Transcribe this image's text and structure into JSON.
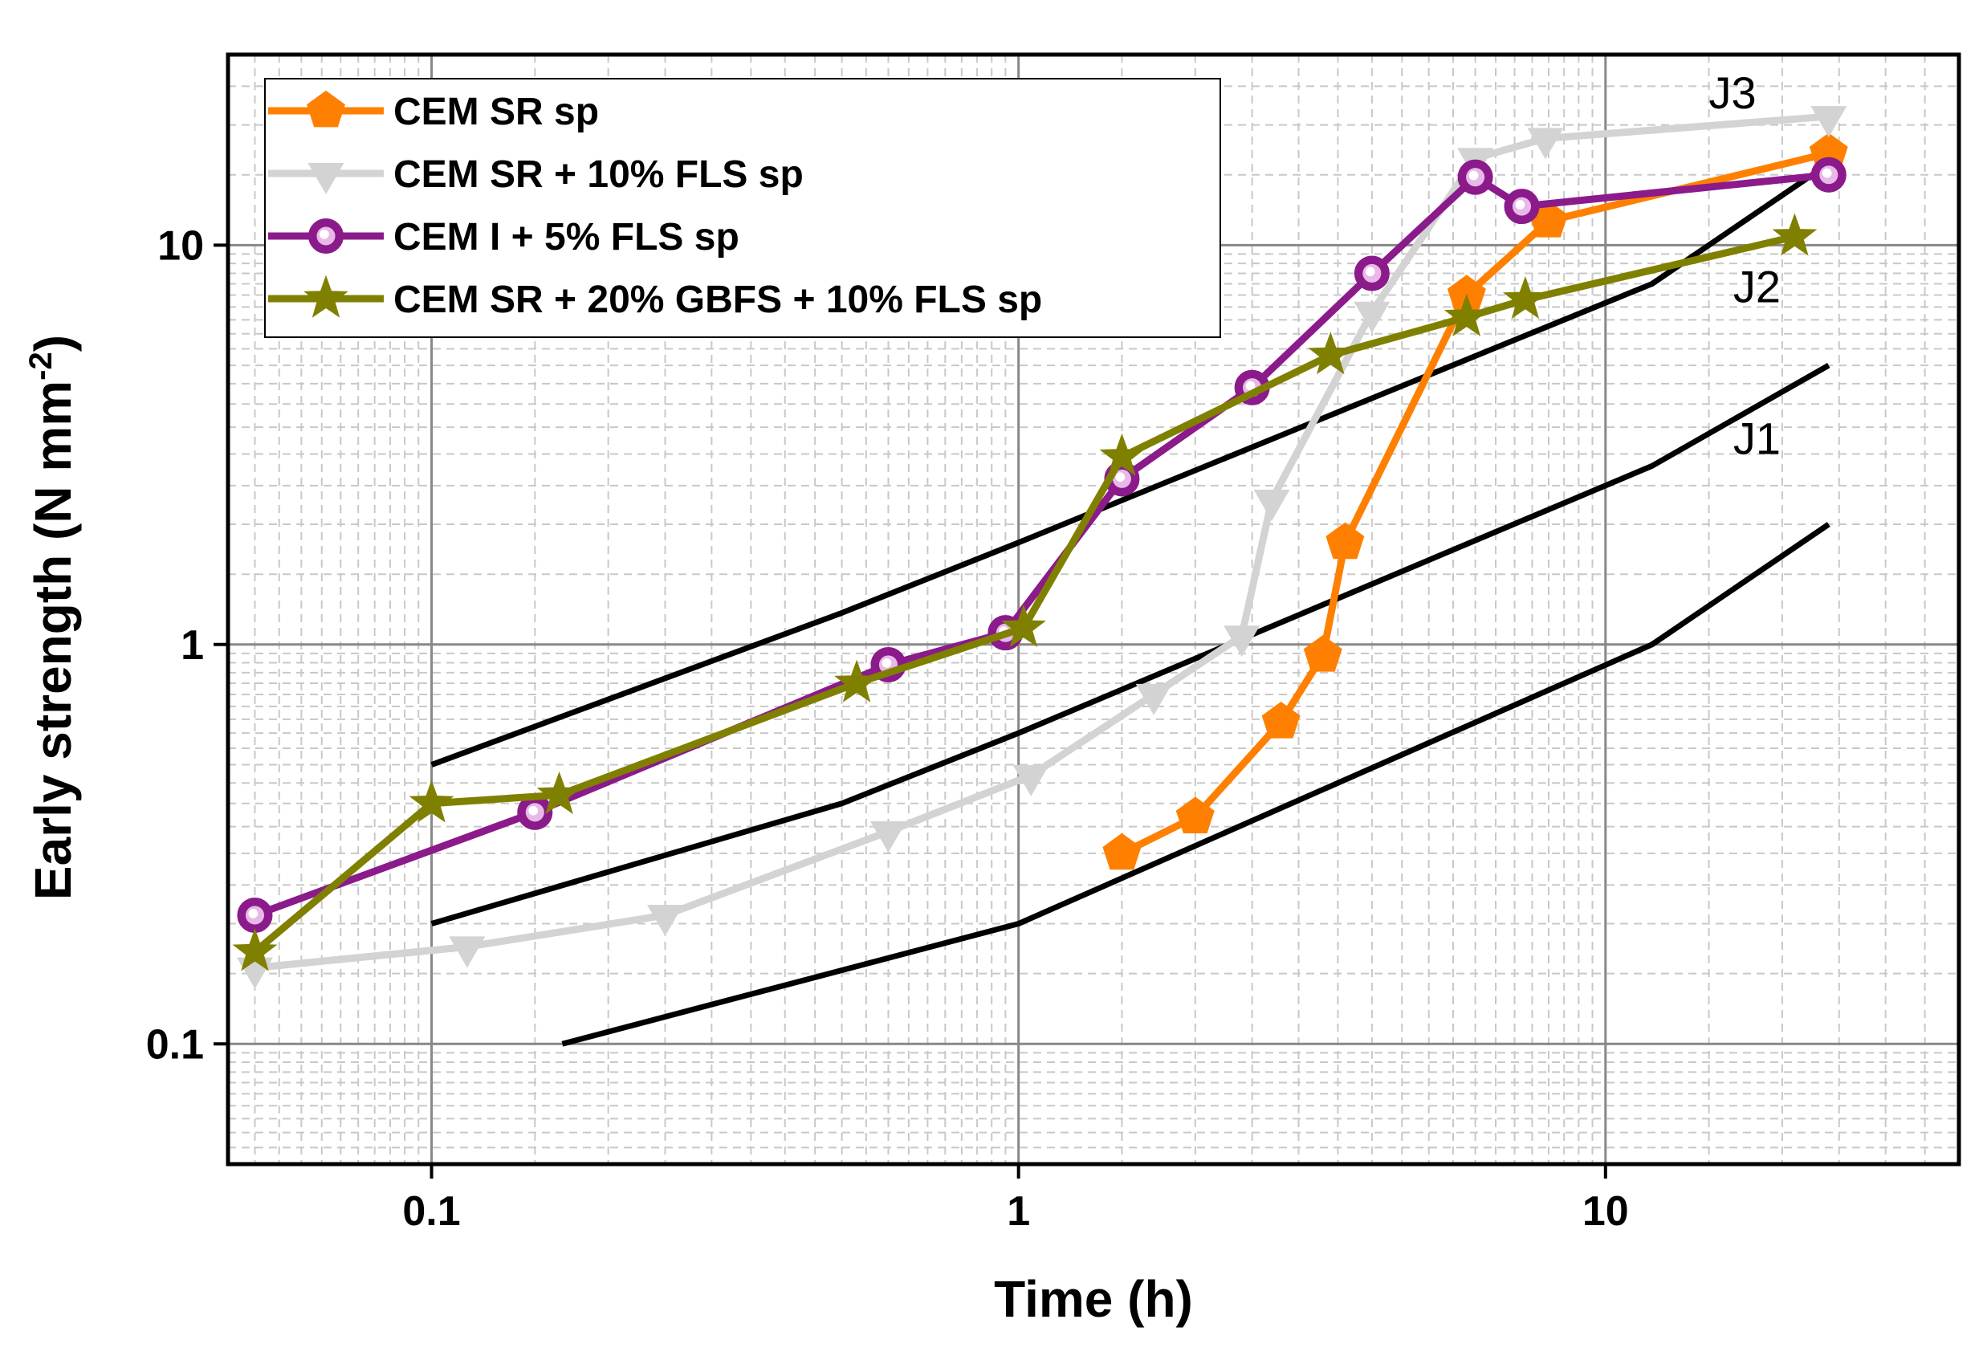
{
  "chart_data": {
    "type": "line",
    "scale": {
      "x": "log",
      "y": "log"
    },
    "xlabel": "Time (h)",
    "ylabel": "Early strength (N mm-2)",
    "ylabel_parts": {
      "main": "Early strength (N mm",
      "sup": "-2",
      "close": ")"
    },
    "xlim": [
      0.045,
      40
    ],
    "ylim": [
      0.05,
      30
    ],
    "x_ticks": [
      {
        "value": 0.1,
        "label": "0.1"
      },
      {
        "value": 1,
        "label": "1"
      },
      {
        "value": 10,
        "label": "10"
      }
    ],
    "y_ticks": [
      {
        "value": 0.1,
        "label": "0.1"
      },
      {
        "value": 1,
        "label": "1"
      },
      {
        "value": 10,
        "label": "10"
      }
    ],
    "grid": true,
    "legend_position": "top-left",
    "series": [
      {
        "name": "CEM SR sp",
        "color": "#ff8000",
        "marker": "pentagon",
        "x": [
          1.5,
          2.0,
          2.8,
          3.3,
          3.6,
          5.8,
          8.0,
          24
        ],
        "y": [
          0.3,
          0.37,
          0.64,
          0.94,
          1.8,
          7.5,
          11.5,
          17
        ]
      },
      {
        "name": "CEM SR + 10% FLS sp",
        "color": "#d3d3d3",
        "marker": "triangle-down",
        "x": [
          0.05,
          0.115,
          0.25,
          0.6,
          1.05,
          1.7,
          2.4,
          2.7,
          4.0,
          6.0,
          7.9,
          24
        ],
        "y": [
          0.155,
          0.175,
          0.21,
          0.34,
          0.47,
          0.75,
          1.05,
          2.3,
          6.8,
          16.5,
          18.5,
          21
        ]
      },
      {
        "name": "CEM I + 5% FLS sp",
        "color": "#8b1a8b",
        "marker": "sphere",
        "x": [
          0.05,
          0.15,
          0.6,
          0.95,
          1.5,
          2.5,
          4.0,
          6.0,
          7.2,
          24
        ],
        "y": [
          0.21,
          0.38,
          0.89,
          1.07,
          2.6,
          4.4,
          8.5,
          14.8,
          12.5,
          15
        ]
      },
      {
        "name": "CEM SR + 20% GBFS + 10% FLS sp",
        "color": "#808000",
        "marker": "star",
        "x": [
          0.05,
          0.1,
          0.165,
          0.53,
          1.02,
          1.5,
          3.4,
          5.8,
          7.3,
          21
        ],
        "y": [
          0.17,
          0.4,
          0.42,
          0.8,
          1.1,
          2.95,
          5.3,
          6.6,
          7.3,
          10.5
        ]
      }
    ],
    "reference_lines": [
      {
        "name": "J3",
        "color": "#000000",
        "x": [
          0.1,
          0.5,
          1,
          12,
          24
        ],
        "y": [
          0.5,
          1.2,
          1.8,
          8,
          16
        ],
        "label_x": 15,
        "label_y": 22
      },
      {
        "name": "J2",
        "color": "#000000",
        "x": [
          0.1,
          0.5,
          1,
          12,
          24
        ],
        "y": [
          0.2,
          0.4,
          0.6,
          2.8,
          5
        ],
        "label_x": 16.5,
        "label_y": 7.2
      },
      {
        "name": "J1",
        "color": "#000000",
        "x": [
          0.167,
          1,
          12,
          24
        ],
        "y": [
          0.1,
          0.2,
          1,
          2
        ],
        "label_x": 16.5,
        "label_y": 3.0
      }
    ]
  }
}
